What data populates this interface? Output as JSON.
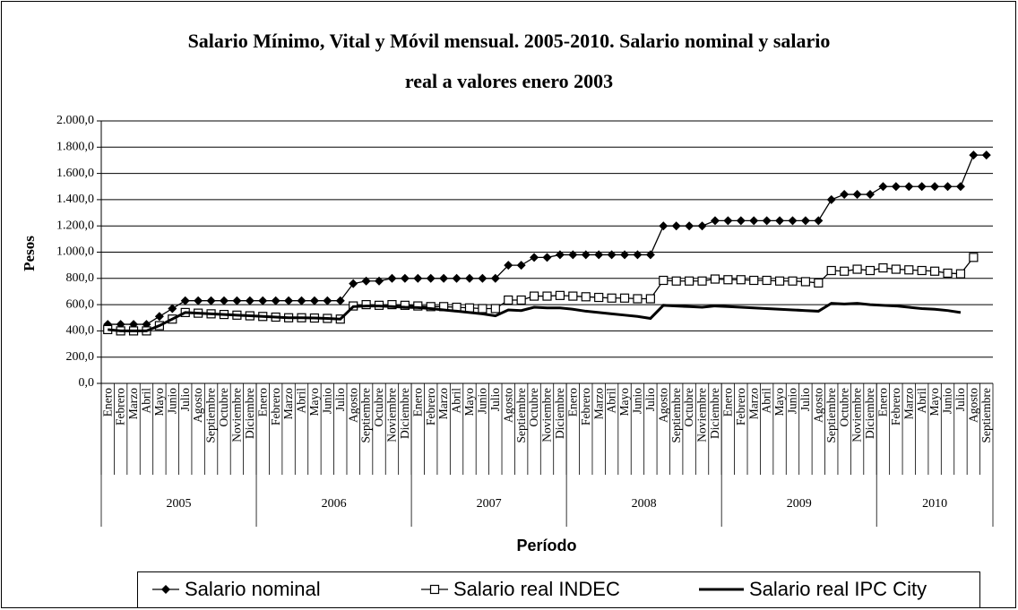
{
  "chart_data": {
    "type": "line",
    "title": "Salario Mínimo, Vital y Móvil mensual. 2005-2010. Salario nominal y salario real a valores enero 2003",
    "y_label": "Pesos",
    "x_label": "Período",
    "category_groups": [
      {
        "label": "2005",
        "labels": [
          "Enero",
          "Febrero",
          "Marzo",
          "Abril",
          "Mayo",
          "Junio",
          "Julio",
          "Agosto",
          "Septiembre",
          "Octubre",
          "Noviembre",
          "Diciembre"
        ]
      },
      {
        "label": "2006",
        "labels": [
          "Enero",
          "Febrero",
          "Marzo",
          "Abril",
          "Mayo",
          "Junio",
          "Julio",
          "Agosto",
          "Septiembre",
          "Octubre",
          "Noviembre",
          "Diciembre"
        ]
      },
      {
        "label": "2007",
        "labels": [
          "Enero",
          "Febrero",
          "Marzo",
          "Abril",
          "Mayo",
          "Junio",
          "Julio",
          "Agosto",
          "Septiembre",
          "Octubre",
          "Noviembre",
          "Diciembre"
        ]
      },
      {
        "label": "2008",
        "labels": [
          "Enero",
          "Febrero",
          "Marzo",
          "Abril",
          "Mayo",
          "Junio",
          "Julio",
          "Agosto",
          "Septiembre",
          "Octubre",
          "Noviembre",
          "Diciembre"
        ]
      },
      {
        "label": "2009",
        "labels": [
          "Enero",
          "Febrero",
          "Marzo",
          "Abril",
          "Mayo",
          "Junio",
          "Julio",
          "Agosto",
          "Septiembre",
          "Octubre",
          "Noviembre",
          "Diciembre"
        ]
      },
      {
        "label": "2010",
        "labels": [
          "Enero",
          "Febrero",
          "Marzo",
          "Abril",
          "Mayo",
          "Junio",
          "Julio",
          "Agosto",
          "Septiembre"
        ]
      }
    ],
    "series": [
      {
        "name": "Salario nominal",
        "color": "#000000",
        "marker": "diamond",
        "values": [
          450,
          450,
          450,
          450,
          510,
          570,
          630,
          630,
          630,
          630,
          630,
          630,
          630,
          630,
          630,
          630,
          630,
          630,
          630,
          760,
          780,
          780,
          800,
          800,
          800,
          800,
          800,
          800,
          800,
          800,
          800,
          900,
          900,
          960,
          960,
          980,
          980,
          980,
          980,
          980,
          980,
          980,
          980,
          1200,
          1200,
          1200,
          1200,
          1240,
          1240,
          1240,
          1240,
          1240,
          1240,
          1240,
          1240,
          1240,
          1400,
          1440,
          1440,
          1440,
          1500,
          1500,
          1500,
          1500,
          1500,
          1500,
          1500,
          1740,
          1740
        ]
      },
      {
        "name": "Salario real INDEC",
        "color": "#000000",
        "marker": "square",
        "values": [
          410,
          400,
          400,
          400,
          440,
          490,
          540,
          535,
          530,
          525,
          520,
          515,
          510,
          505,
          500,
          500,
          498,
          495,
          490,
          590,
          600,
          595,
          600,
          595,
          590,
          585,
          585,
          580,
          575,
          570,
          570,
          635,
          635,
          665,
          665,
          670,
          665,
          660,
          655,
          650,
          650,
          645,
          645,
          785,
          780,
          780,
          780,
          795,
          790,
          790,
          785,
          785,
          780,
          780,
          775,
          765,
          860,
          855,
          870,
          860,
          880,
          870,
          865,
          860,
          855,
          840,
          835,
          960,
          null
        ]
      },
      {
        "name": "Salario real IPC City",
        "color": "#000000",
        "marker": "none",
        "values": [
          410,
          400,
          400,
          400,
          440,
          490,
          540,
          535,
          530,
          525,
          520,
          515,
          510,
          505,
          500,
          500,
          498,
          495,
          490,
          585,
          590,
          590,
          585,
          580,
          578,
          570,
          560,
          550,
          540,
          530,
          515,
          560,
          555,
          580,
          575,
          575,
          565,
          550,
          540,
          530,
          520,
          510,
          495,
          595,
          590,
          585,
          580,
          590,
          585,
          580,
          575,
          570,
          565,
          560,
          555,
          550,
          610,
          605,
          610,
          600,
          595,
          590,
          580,
          570,
          565,
          555,
          540,
          null,
          null
        ]
      }
    ],
    "ylim": [
      0,
      2000
    ],
    "yticks": [
      {
        "value": 0,
        "label": "0,0"
      },
      {
        "value": 200,
        "label": "200,0"
      },
      {
        "value": 400,
        "label": "400,0"
      },
      {
        "value": 600,
        "label": "600,0"
      },
      {
        "value": 800,
        "label": "800,0"
      },
      {
        "value": 1000,
        "label": "1.000,0"
      },
      {
        "value": 1200,
        "label": "1.200,0"
      },
      {
        "value": 1400,
        "label": "1.400,0"
      },
      {
        "value": 1600,
        "label": "1.600,0"
      },
      {
        "value": 1800,
        "label": "1.800,0"
      },
      {
        "value": 2000,
        "label": "2.000,0"
      }
    ],
    "grid": true,
    "legend": "bottom"
  }
}
